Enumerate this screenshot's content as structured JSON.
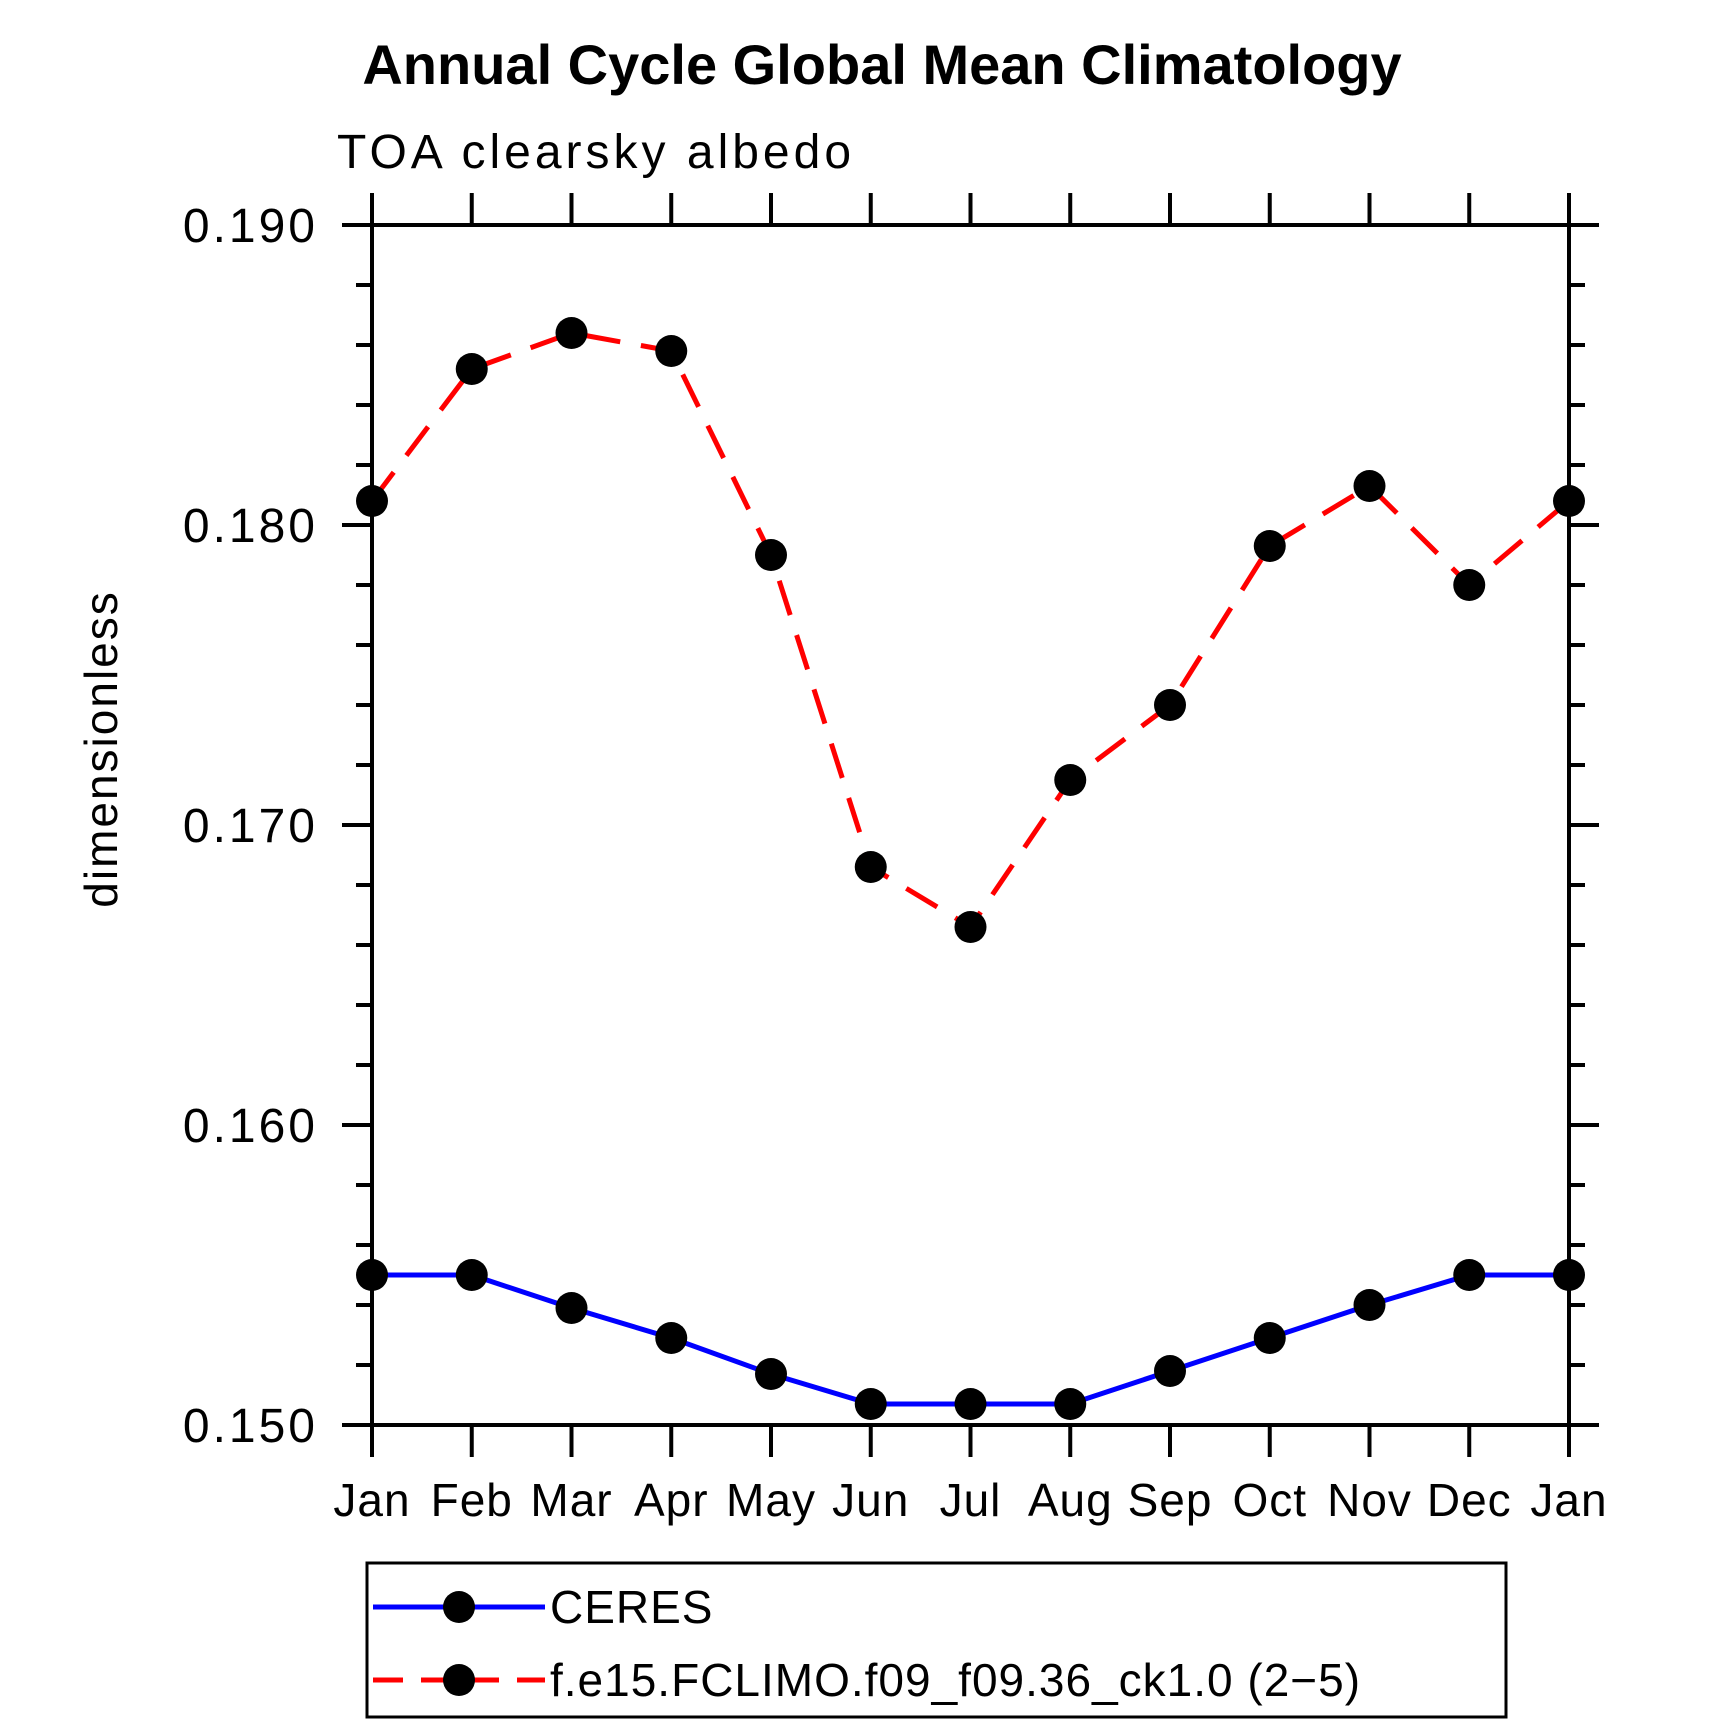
{
  "title": "Annual Cycle Global Mean Climatology",
  "subtitle": "TOA clearsky albedo",
  "y_axis_label": "dimensionless",
  "colors": {
    "axis": "#000000",
    "background": "#ffffff",
    "marker": "#000000",
    "ceres_line": "#0000ff",
    "model_line": "#ff0000"
  },
  "chart_data": {
    "type": "line",
    "title": "Annual Cycle Global Mean Climatology",
    "subtitle": "TOA clearsky albedo",
    "ylabel": "dimensionless",
    "xlabel": "",
    "categories": [
      "Jan",
      "Feb",
      "Mar",
      "Apr",
      "May",
      "Jun",
      "Jul",
      "Aug",
      "Sep",
      "Oct",
      "Nov",
      "Dec",
      "Jan"
    ],
    "series": [
      {
        "name": "CERES",
        "color": "#0000ff",
        "line_style": "solid",
        "marker": "circle",
        "values": [
          0.155,
          0.155,
          0.1539,
          0.1529,
          0.1517,
          0.1507,
          0.1507,
          0.1507,
          0.1518,
          0.1529,
          0.154,
          0.155,
          0.155
        ]
      },
      {
        "name": "f.e15.FCLIMO.f09_f09.36_ck1.0 (2−5)",
        "color": "#ff0000",
        "line_style": "dashed",
        "marker": "circle",
        "values": [
          0.1808,
          0.1852,
          0.1864,
          0.1858,
          0.179,
          0.1686,
          0.1666,
          0.1715,
          0.174,
          0.1793,
          0.1813,
          0.178,
          0.1808
        ]
      }
    ],
    "ylim": [
      0.15,
      0.19
    ],
    "yticks_major": [
      0.15,
      0.16,
      0.17,
      0.18,
      0.19
    ],
    "ytick_labels": [
      "0.150",
      "0.160",
      "0.170",
      "0.180",
      "0.190"
    ],
    "ytick_minor_step": 0.002,
    "grid": false,
    "legend_position": "bottom-left"
  }
}
